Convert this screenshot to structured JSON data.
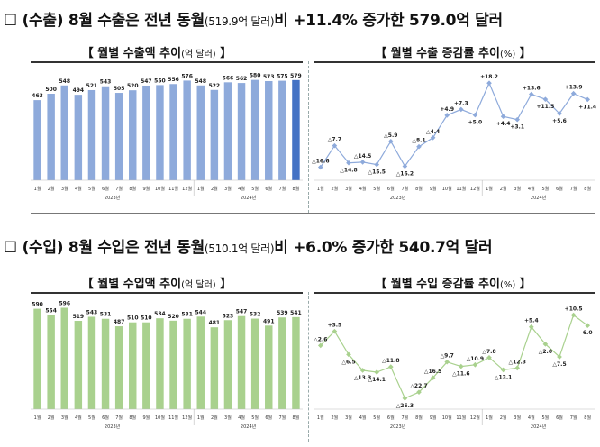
{
  "export": {
    "headline": {
      "box": "☐",
      "prefix": "(수출) 8월 수출은 전년 동월",
      "paren": "(519.9억 달러)",
      "suffix": "비 +11.4% 증가한 579.0억 달러"
    },
    "panel_left_title": {
      "main": "【 월별 수출액 추이",
      "unit": "(억 달러)",
      "close": " 】"
    },
    "panel_right_title": {
      "main": "【 월별 수출 증감률 추이",
      "unit": "(%)",
      "close": " 】"
    }
  },
  "import": {
    "headline": {
      "box": "☐",
      "prefix": "(수입) 8월 수입은 전년 동월",
      "paren": "(510.1억 달러)",
      "suffix": "비 +6.0% 증가한 540.7억 달러"
    },
    "panel_left_title": {
      "main": "【 월별 수입액 추이",
      "unit": "(억 달러)",
      "close": " 】"
    },
    "panel_right_title": {
      "main": "【 월별 수입 증감률 추이",
      "unit": "(%)",
      "close": " 】"
    }
  },
  "colors": {
    "export_bar": "#8eaadb",
    "export_bar_latest": "#4472c4",
    "export_line": "#8eaadb",
    "import_bar": "#a9d18e",
    "import_line": "#a9d18e"
  },
  "chart_data": [
    {
      "id": "export-amount",
      "type": "bar",
      "categories": [
        "1월",
        "2월",
        "3월",
        "4월",
        "5월",
        "6월",
        "7월",
        "8월",
        "9월",
        "10월",
        "11월",
        "12월",
        "1월",
        "2월",
        "3월",
        "4월",
        "5월",
        "6월",
        "7월",
        "8월"
      ],
      "values": [
        463,
        500,
        548,
        494,
        521,
        543,
        505,
        520,
        547,
        550,
        556,
        576,
        548,
        522,
        566,
        562,
        580,
        573,
        575,
        579
      ],
      "year_groups": [
        {
          "label": "2023년",
          "start": 0,
          "end": 11
        },
        {
          "label": "2024년",
          "start": 12,
          "end": 19
        }
      ],
      "highlight_last": true
    },
    {
      "id": "export-rate",
      "type": "line",
      "categories": [
        "1월",
        "2월",
        "3월",
        "4월",
        "5월",
        "6월",
        "7월",
        "8월",
        "9월",
        "10월",
        "11월",
        "12월",
        "1월",
        "2월",
        "3월",
        "4월",
        "5월",
        "6월",
        "7월",
        "8월"
      ],
      "values": [
        -16.6,
        -7.7,
        -14.8,
        -14.5,
        -15.5,
        -5.9,
        -16.2,
        -8.1,
        -4.4,
        4.9,
        7.3,
        5.0,
        18.2,
        4.4,
        3.1,
        13.6,
        11.5,
        5.6,
        13.9,
        11.4
      ],
      "labels": [
        "△16.6",
        "△7.7",
        "△14.8",
        "△14.5",
        "△15.5",
        "△5.9",
        "△16.2",
        "△8.1",
        "△4.4",
        "+4.9",
        "+7.3",
        "+5.0",
        "+18.2",
        "+4.4",
        "+3.1",
        "+13.6",
        "+11.5",
        "+5.6",
        "+13.9",
        "+11.4"
      ],
      "year_groups": [
        {
          "label": "2023년",
          "start": 0,
          "end": 11
        },
        {
          "label": "2024년",
          "start": 12,
          "end": 19
        }
      ]
    },
    {
      "id": "import-amount",
      "type": "bar",
      "categories": [
        "1월",
        "2월",
        "3월",
        "4월",
        "5월",
        "6월",
        "7월",
        "8월",
        "9월",
        "10월",
        "11월",
        "12월",
        "1월",
        "2월",
        "3월",
        "4월",
        "5월",
        "6월",
        "7월",
        "8월"
      ],
      "values": [
        590,
        554,
        596,
        519,
        543,
        531,
        487,
        510,
        510,
        534,
        520,
        531,
        544,
        481,
        523,
        547,
        532,
        491,
        539,
        541
      ],
      "year_groups": [
        {
          "label": "2023년",
          "start": 0,
          "end": 11
        },
        {
          "label": "2024년",
          "start": 12,
          "end": 19
        }
      ],
      "highlight_last": false
    },
    {
      "id": "import-rate",
      "type": "line",
      "categories": [
        "1월",
        "2월",
        "3월",
        "4월",
        "5월",
        "6월",
        "7월",
        "8월",
        "9월",
        "10월",
        "11월",
        "12월",
        "1월",
        "2월",
        "3월",
        "4월",
        "5월",
        "6월",
        "7월",
        "8월"
      ],
      "values": [
        -2.6,
        3.5,
        -6.5,
        -13.3,
        -14.1,
        -11.8,
        -25.3,
        -22.7,
        -16.5,
        -9.7,
        -11.6,
        -10.9,
        -7.8,
        -13.1,
        -12.3,
        5.4,
        -2.0,
        -7.5,
        10.5,
        6.0
      ],
      "labels": [
        "△2.6",
        "+3.5",
        "△6.5",
        "△13.3",
        "△14.1",
        "△11.8",
        "△25.3",
        "△22.7",
        "△16.5",
        "△9.7",
        "△11.6",
        "△10.9",
        "△7.8",
        "△13.1",
        "△12.3",
        "+5.4",
        "△2.0",
        "△7.5",
        "+10.5",
        "6.0"
      ],
      "year_groups": [
        {
          "label": "2023년",
          "start": 0,
          "end": 11
        },
        {
          "label": "2024년",
          "start": 12,
          "end": 19
        }
      ]
    }
  ]
}
